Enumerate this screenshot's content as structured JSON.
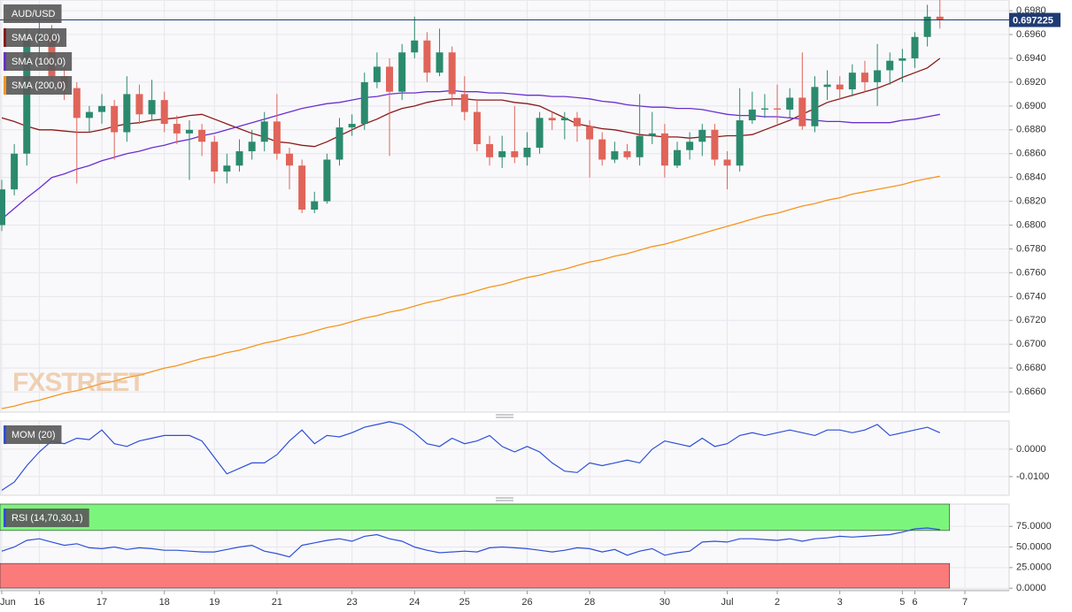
{
  "chart_data": [
    {
      "type": "candlestick",
      "title": "AUD/USD",
      "watermark": "FXSTREET",
      "categories": [
        "Jun",
        null,
        null,
        "16",
        null,
        null,
        null,
        null,
        "17",
        null,
        null,
        null,
        null,
        "18",
        null,
        null,
        null,
        "19",
        null,
        null,
        null,
        null,
        "21",
        null,
        null,
        null,
        null,
        null,
        "23",
        null,
        null,
        null,
        null,
        "24",
        null,
        null,
        null,
        "25",
        null,
        null,
        null,
        null,
        "26",
        null,
        null,
        null,
        null,
        "28",
        null,
        null,
        null,
        null,
        null,
        "30",
        null,
        null,
        null,
        null,
        "Jul",
        null,
        null,
        null,
        "2",
        null,
        null,
        null,
        null,
        "3",
        null,
        null,
        null,
        null,
        "5",
        "6",
        null,
        null,
        null,
        "7"
      ],
      "open": [
        0.68,
        0.683,
        0.686,
        0.6955,
        0.696,
        0.6925,
        0.6915,
        0.689,
        0.6895,
        0.69,
        0.6878,
        0.691,
        0.6893,
        0.6905,
        0.6885,
        0.6877,
        0.688,
        0.687,
        0.6845,
        0.685,
        0.6862,
        0.687,
        0.6887,
        0.686,
        0.685,
        0.6813,
        0.682,
        0.6855,
        0.6882,
        0.6885,
        0.692,
        0.6933,
        0.6912,
        0.6945,
        0.6955,
        0.6928,
        0.6945,
        0.691,
        0.6895,
        0.6868,
        0.6857,
        0.6862,
        0.6857,
        0.6865,
        0.689,
        0.6888,
        0.689,
        0.6883,
        0.6872,
        0.6855,
        0.6862,
        0.6857,
        0.6875,
        0.6877,
        0.685,
        0.6863,
        0.687,
        0.688,
        0.6855,
        0.685,
        0.6888,
        0.6897,
        0.6898,
        0.6897,
        0.6907,
        0.6883,
        0.6916,
        0.6918,
        0.6914,
        0.6928,
        0.692,
        0.693,
        0.6938,
        0.694,
        0.6958,
        0.6975,
        null,
        null
      ],
      "high": [
        0.6838,
        0.6868,
        0.6965,
        0.6975,
        0.6968,
        0.6935,
        0.692,
        0.69,
        0.691,
        0.6905,
        0.6925,
        0.6918,
        0.6922,
        0.6912,
        0.6892,
        0.6888,
        0.6885,
        0.6875,
        0.686,
        0.6872,
        0.688,
        0.6895,
        0.691,
        0.6865,
        0.6855,
        0.6828,
        0.686,
        0.689,
        0.6893,
        0.6928,
        0.6945,
        0.694,
        0.6952,
        0.6975,
        0.6962,
        0.6965,
        0.695,
        0.6925,
        0.6905,
        0.6875,
        0.6875,
        0.69,
        0.6878,
        0.6895,
        0.6895,
        0.6895,
        0.6895,
        0.6888,
        0.6878,
        0.687,
        0.6868,
        0.691,
        0.6895,
        0.6885,
        0.687,
        0.6878,
        0.6885,
        0.6885,
        0.6862,
        0.6915,
        0.6912,
        0.691,
        0.6918,
        0.6915,
        0.6945,
        0.6925,
        0.693,
        0.6925,
        0.6935,
        0.6938,
        0.6952,
        0.6945,
        0.6948,
        0.6962,
        0.6985,
        0.699,
        null,
        null
      ],
      "low": [
        0.6795,
        0.6825,
        0.685,
        0.694,
        0.6915,
        0.6905,
        0.6835,
        0.6878,
        0.6885,
        0.6855,
        0.687,
        0.6885,
        0.6888,
        0.6878,
        0.6868,
        0.6838,
        0.6858,
        0.6835,
        0.6835,
        0.6845,
        0.6855,
        0.6862,
        0.6855,
        0.683,
        0.681,
        0.681,
        0.6818,
        0.685,
        0.6875,
        0.688,
        0.6915,
        0.6858,
        0.6905,
        0.694,
        0.692,
        0.6925,
        0.69,
        0.6888,
        0.6862,
        0.685,
        0.6848,
        0.6852,
        0.685,
        0.686,
        0.688,
        0.6872,
        0.687,
        0.684,
        0.685,
        0.6852,
        0.6855,
        0.685,
        0.6868,
        0.684,
        0.6848,
        0.6855,
        0.6858,
        0.685,
        0.683,
        0.6845,
        0.6885,
        0.689,
        0.6885,
        0.689,
        0.688,
        0.6878,
        0.6905,
        0.6905,
        0.6908,
        0.6912,
        0.69,
        0.6918,
        0.692,
        0.6932,
        0.695,
        0.6965,
        null,
        null
      ],
      "close": [
        0.683,
        0.686,
        0.6955,
        0.696,
        0.6925,
        0.6915,
        0.689,
        0.6895,
        0.69,
        0.6878,
        0.691,
        0.6893,
        0.6905,
        0.6885,
        0.6877,
        0.688,
        0.687,
        0.6845,
        0.685,
        0.6862,
        0.687,
        0.6887,
        0.686,
        0.685,
        0.6813,
        0.682,
        0.6855,
        0.6882,
        0.6885,
        0.692,
        0.6933,
        0.6912,
        0.6945,
        0.6955,
        0.6928,
        0.6945,
        0.691,
        0.6895,
        0.6868,
        0.6857,
        0.6862,
        0.6857,
        0.6865,
        0.689,
        0.6888,
        0.689,
        0.6883,
        0.6872,
        0.6855,
        0.6862,
        0.6857,
        0.6875,
        0.6877,
        0.685,
        0.6863,
        0.687,
        0.688,
        0.6855,
        0.685,
        0.6888,
        0.6897,
        0.6898,
        0.6897,
        0.6907,
        0.6883,
        0.6916,
        0.6918,
        0.6914,
        0.6928,
        0.692,
        0.693,
        0.6938,
        0.694,
        0.6958,
        0.6975,
        0.6972,
        null,
        null
      ],
      "up_color": "#2b8a6e",
      "down_color": "#e0645a",
      "series": [
        {
          "name": "SMA (20,0)",
          "color": "#8b1a1a",
          "values": [
            0.689,
            0.6887,
            0.6883,
            0.688,
            0.688,
            0.6879,
            0.6878,
            0.6878,
            0.688,
            0.6883,
            0.6885,
            0.6886,
            0.6888,
            0.6889,
            0.689,
            0.6892,
            0.6893,
            0.6889,
            0.6885,
            0.6881,
            0.6877,
            0.6874,
            0.687,
            0.6869,
            0.6867,
            0.6866,
            0.687,
            0.6875,
            0.688,
            0.6885,
            0.6889,
            0.6894,
            0.6898,
            0.69,
            0.6903,
            0.6905,
            0.6906,
            0.6906,
            0.6905,
            0.6905,
            0.6905,
            0.6903,
            0.6902,
            0.69,
            0.6895,
            0.689,
            0.6885,
            0.6883,
            0.6881,
            0.688,
            0.6878,
            0.6876,
            0.6875,
            0.6874,
            0.6874,
            0.6873,
            0.6874,
            0.6874,
            0.6875,
            0.6875,
            0.6876,
            0.688,
            0.6884,
            0.6888,
            0.6893,
            0.6898,
            0.6903,
            0.6906,
            0.6909,
            0.6912,
            0.6915,
            0.6919,
            0.6924,
            0.6928,
            0.6932,
            0.694,
            null,
            null
          ]
        },
        {
          "name": "SMA (100,0)",
          "color": "#6a2fd0",
          "values": [
            0.6805,
            0.6814,
            0.6823,
            0.6831,
            0.684,
            0.6843,
            0.6847,
            0.685,
            0.6854,
            0.6857,
            0.686,
            0.6862,
            0.6865,
            0.6867,
            0.687,
            0.6872,
            0.6875,
            0.6877,
            0.688,
            0.6883,
            0.6886,
            0.6889,
            0.6892,
            0.6895,
            0.6898,
            0.69,
            0.6902,
            0.6903,
            0.6905,
            0.6907,
            0.6908,
            0.691,
            0.6911,
            0.6911,
            0.6912,
            0.6912,
            0.6913,
            0.6912,
            0.6912,
            0.6911,
            0.6911,
            0.691,
            0.6909,
            0.6909,
            0.6908,
            0.6908,
            0.6907,
            0.6906,
            0.6904,
            0.6903,
            0.6901,
            0.69,
            0.6899,
            0.6899,
            0.6898,
            0.6898,
            0.6897,
            0.6895,
            0.6893,
            0.6892,
            0.6892,
            0.6891,
            0.6891,
            0.689,
            0.6889,
            0.6888,
            0.6887,
            0.6887,
            0.6886,
            0.6886,
            0.6886,
            0.6886,
            0.6888,
            0.6889,
            0.6891,
            0.6893,
            null,
            null
          ]
        },
        {
          "name": "SMA (200,0)",
          "color": "#f7941d",
          "values": [
            0.6646,
            0.6648,
            0.6651,
            0.6653,
            0.6656,
            0.6659,
            0.6661,
            0.6664,
            0.6667,
            0.6669,
            0.6672,
            0.6674,
            0.6677,
            0.668,
            0.6682,
            0.6685,
            0.6688,
            0.669,
            0.6693,
            0.6695,
            0.6698,
            0.6701,
            0.6703,
            0.6706,
            0.6708,
            0.6711,
            0.6714,
            0.6716,
            0.6719,
            0.6722,
            0.6724,
            0.6727,
            0.6729,
            0.6732,
            0.6735,
            0.6737,
            0.674,
            0.6742,
            0.6745,
            0.6748,
            0.675,
            0.6753,
            0.6756,
            0.6758,
            0.6761,
            0.6763,
            0.6766,
            0.6769,
            0.6771,
            0.6774,
            0.6776,
            0.6779,
            0.6782,
            0.6784,
            0.6787,
            0.679,
            0.6793,
            0.6796,
            0.6799,
            0.6802,
            0.6805,
            0.6808,
            0.681,
            0.6813,
            0.6816,
            0.6818,
            0.6821,
            0.6823,
            0.6826,
            0.6828,
            0.683,
            0.6832,
            0.6834,
            0.6837,
            0.6839,
            0.6841,
            null,
            null
          ]
        }
      ],
      "last_price": 0.697225,
      "last_price_color": "#1f3b73",
      "ylim": [
        0.6643,
        0.6989
      ],
      "yticks": [
        {
          "value": 0.698,
          "label": "0.6980"
        },
        {
          "value": 0.696,
          "label": "0.6960"
        },
        {
          "value": 0.694,
          "label": "0.6940"
        },
        {
          "value": 0.692,
          "label": "0.6920"
        },
        {
          "value": 0.69,
          "label": "0.6900"
        },
        {
          "value": 0.688,
          "label": "0.6880"
        },
        {
          "value": 0.686,
          "label": "0.6860"
        },
        {
          "value": 0.684,
          "label": "0.6840"
        },
        {
          "value": 0.682,
          "label": "0.6820"
        },
        {
          "value": 0.68,
          "label": "0.6800"
        },
        {
          "value": 0.678,
          "label": "0.6780"
        },
        {
          "value": 0.676,
          "label": "0.6760"
        },
        {
          "value": 0.674,
          "label": "0.6740"
        },
        {
          "value": 0.672,
          "label": "0.6720"
        },
        {
          "value": 0.67,
          "label": "0.6700"
        },
        {
          "value": 0.668,
          "label": "0.6680"
        },
        {
          "value": 0.666,
          "label": "0.6660"
        }
      ],
      "grid": true
    },
    {
      "type": "line",
      "title": "MOM (20)",
      "color": "#2e4fd8",
      "values": [
        -0.015,
        -0.012,
        -0.006,
        -0.001,
        0.003,
        0.002,
        0.004,
        0.0035,
        0.007,
        0.002,
        0.001,
        0.003,
        0.004,
        0.005,
        0.005,
        0.005,
        0.003,
        -0.003,
        -0.009,
        -0.007,
        -0.005,
        -0.005,
        -0.002,
        0.003,
        0.007,
        0.002,
        0.005,
        0.0045,
        0.006,
        0.008,
        0.009,
        0.01,
        0.009,
        0.006,
        0.002,
        0.001,
        0.004,
        0.002,
        0.003,
        0.005,
        0.001,
        -0.001,
        0.001,
        -0.001,
        -0.005,
        -0.008,
        -0.0085,
        -0.005,
        -0.006,
        -0.005,
        -0.004,
        -0.005,
        0.0,
        0.003,
        0.002,
        0.001,
        0.004,
        0.001,
        0.002,
        0.005,
        0.006,
        0.005,
        0.006,
        0.007,
        0.006,
        0.005,
        0.007,
        0.007,
        0.006,
        0.007,
        0.009,
        0.005,
        0.006,
        0.007,
        0.008,
        0.006,
        null,
        null
      ],
      "ylim": [
        -0.0168,
        0.0103
      ],
      "yticks": [
        {
          "value": 0,
          "label": "0.0000"
        },
        {
          "value": -0.01,
          "label": "-0.0100"
        }
      ],
      "grid": true
    },
    {
      "type": "line",
      "title": "RSI (14,70,30,1)",
      "color": "#2e4fd8",
      "upper": 70,
      "lower": 30,
      "upper_color": "#7cf57c",
      "lower_color": "#fb7b7b",
      "values": [
        45,
        50,
        58,
        60,
        56,
        52,
        54,
        49,
        48,
        50,
        47,
        49,
        48,
        46,
        46,
        45,
        44,
        44,
        47,
        50,
        52,
        45,
        42,
        38,
        52,
        55,
        58,
        60,
        57,
        63,
        65,
        60,
        57,
        50,
        46,
        43,
        44,
        45,
        44,
        49,
        50,
        49,
        48,
        46,
        44,
        46,
        49,
        48,
        44,
        47,
        40,
        45,
        48,
        40,
        43,
        45,
        56,
        57,
        56,
        60,
        60,
        59,
        58,
        60,
        57,
        60,
        61,
        63,
        62,
        63,
        64,
        65,
        68,
        72,
        73,
        71,
        null,
        null
      ],
      "ylim": [
        -2,
        102
      ],
      "yticks": [
        {
          "value": 75,
          "label": "75.0000"
        },
        {
          "value": 50,
          "label": "50.0000"
        },
        {
          "value": 25,
          "label": "25.0000"
        },
        {
          "value": 0,
          "label": "0.0000"
        }
      ],
      "grid": true
    }
  ]
}
